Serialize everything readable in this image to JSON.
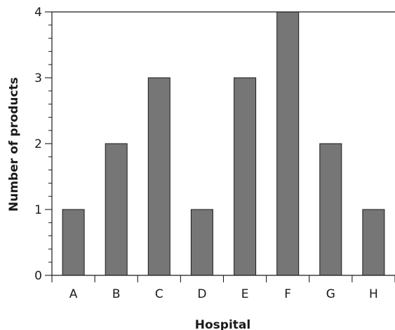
{
  "chart_data": {
    "type": "bar",
    "categories": [
      "A",
      "B",
      "C",
      "D",
      "E",
      "F",
      "G",
      "H"
    ],
    "values": [
      1,
      2,
      3,
      1,
      3,
      4,
      2,
      1
    ],
    "title": "",
    "xlabel": "Hospital",
    "ylabel": "Number of products",
    "ylim": [
      0,
      4
    ],
    "yticks": [
      "0",
      "1",
      "2",
      "3",
      "4"
    ],
    "grid": false,
    "bar_color": "#767676",
    "bar_edge_color": "#1a1a1a"
  }
}
